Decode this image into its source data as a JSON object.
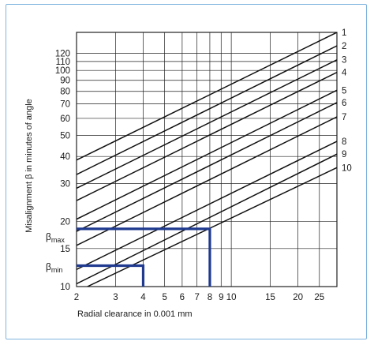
{
  "chart_data": {
    "type": "line",
    "xlabel": "Radial clearance in 0.001 mm",
    "ylabel": "Misalignment β in minutes of angle",
    "x_scale": "log",
    "y_scale": "log",
    "xlim": [
      2,
      30
    ],
    "ylim": [
      10,
      150
    ],
    "grid": true,
    "x_ticks": [
      "2",
      "3",
      "4",
      "5",
      "6",
      "7",
      "8",
      "9",
      "10",
      "15",
      "20",
      "25"
    ],
    "y_ticks": [
      "10",
      "15",
      "20",
      "30",
      "40",
      "50",
      "60",
      "70",
      "80",
      "90",
      "100",
      "110",
      "120"
    ],
    "series": [
      {
        "name": "1",
        "x": [
          2,
          30
        ],
        "y": [
          38.5,
          150
        ]
      },
      {
        "name": "2",
        "x": [
          2,
          30
        ],
        "y": [
          33,
          130
        ]
      },
      {
        "name": "3",
        "x": [
          2,
          30
        ],
        "y": [
          28.5,
          112
        ]
      },
      {
        "name": "4",
        "x": [
          2,
          30
        ],
        "y": [
          25,
          98
        ]
      },
      {
        "name": "5",
        "x": [
          2,
          30
        ],
        "y": [
          20.5,
          81
        ]
      },
      {
        "name": "6",
        "x": [
          2,
          30
        ],
        "y": [
          18,
          71
        ]
      },
      {
        "name": "7",
        "x": [
          2,
          30
        ],
        "y": [
          15.5,
          61
        ]
      },
      {
        "name": "8",
        "x": [
          2,
          30
        ],
        "y": [
          12,
          47
        ]
      },
      {
        "name": "9",
        "x": [
          2,
          30
        ],
        "y": [
          10.3,
          41
        ]
      },
      {
        "name": "10",
        "x": [
          2.24,
          30
        ],
        "y": [
          10,
          35.5
        ]
      }
    ],
    "annotations": [
      {
        "label": "βmax",
        "x": 8,
        "y": 18.5
      },
      {
        "label": "βmin",
        "x": 4,
        "y": 12.5
      }
    ]
  },
  "labels": {
    "beta": "β",
    "beta_max_sub": "max",
    "beta_min_sub": "min"
  },
  "colors": {
    "lines": "#111111",
    "grid": "#222222",
    "highlight": "#1f3a8f",
    "frame": "#7fb4df"
  }
}
